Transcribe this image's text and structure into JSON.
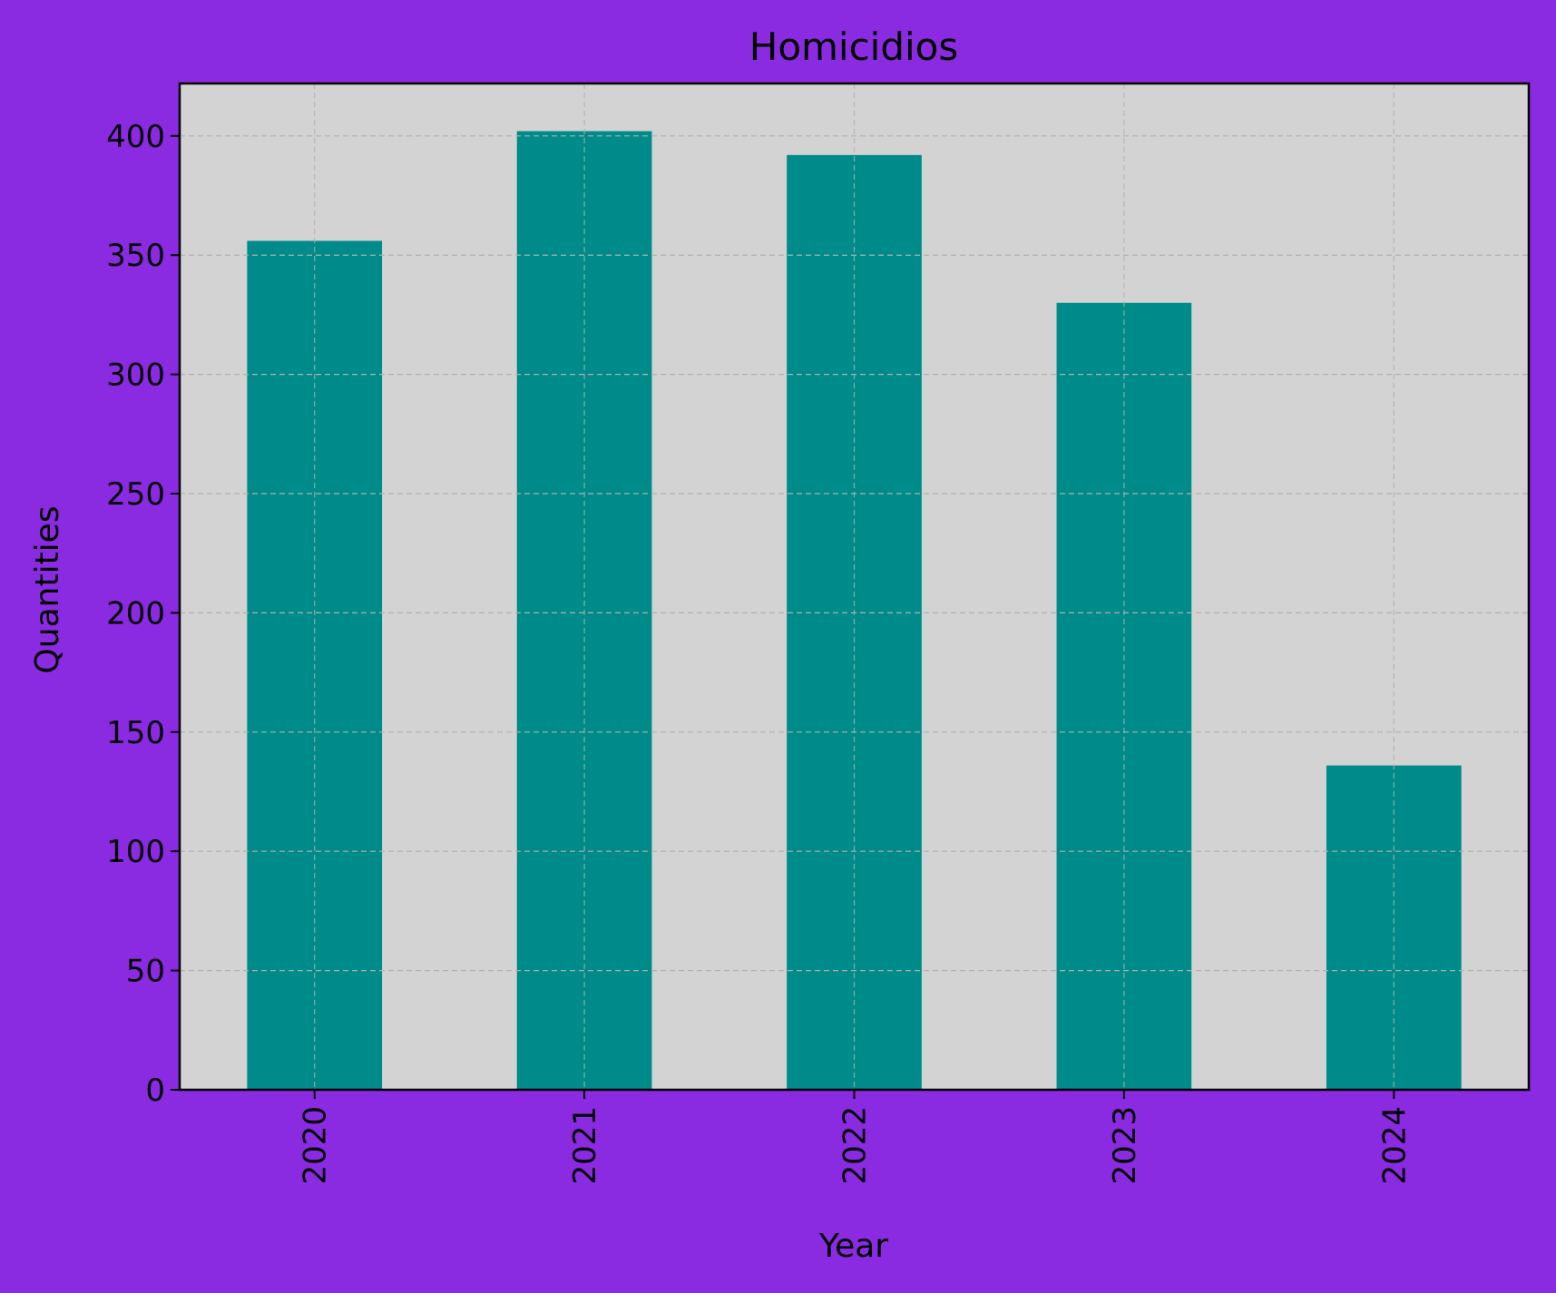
{
  "colors": {
    "page_background": "#8a2be2",
    "plot_background": "#d3d3d3",
    "bar": "#008b8b",
    "grid": "#b0b0b0",
    "axes": "#000000"
  },
  "chart_data": {
    "type": "bar",
    "title": "Homicidios",
    "xlabel": "Year",
    "ylabel": "Quantities",
    "categories": [
      "2020",
      "2021",
      "2022",
      "2023",
      "2024"
    ],
    "values": [
      356,
      402,
      392,
      330,
      136
    ],
    "ylim": [
      0,
      422
    ],
    "yticks": [
      0,
      50,
      100,
      150,
      200,
      250,
      300,
      350,
      400
    ],
    "grid": true,
    "x_tick_rotation": "vertical"
  }
}
